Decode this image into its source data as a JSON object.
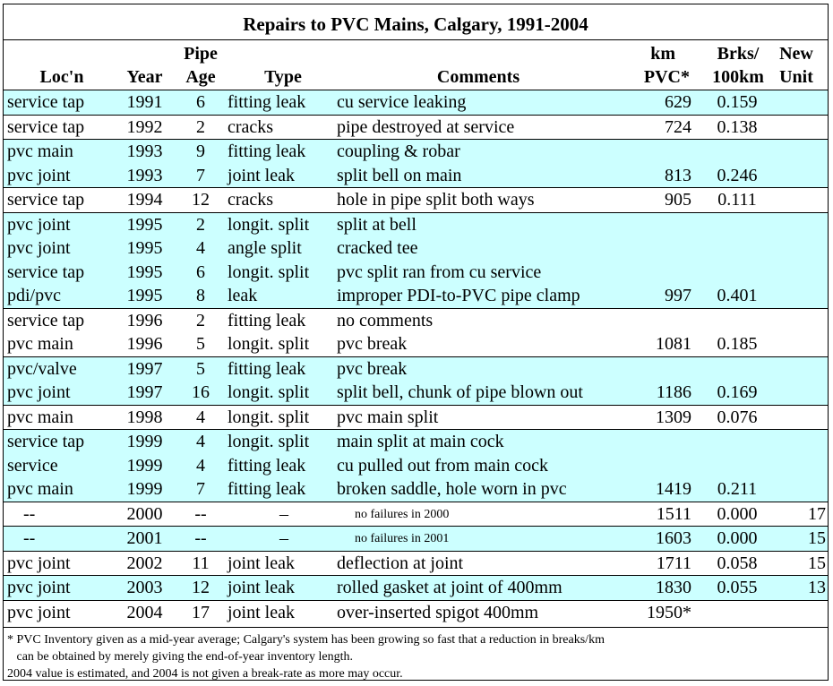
{
  "title": "Repairs to PVC Mains, Calgary, 1991-2004",
  "header": {
    "loc": "Loc'n",
    "year": "Year",
    "pipe": "Pipe",
    "age": "Age",
    "type": "Type",
    "comments": "Comments",
    "km": "km",
    "pvc": "PVC*",
    "brks": "Brks/",
    "per100km": "100km",
    "new": "New",
    "unit": "Unit"
  },
  "groups": [
    {
      "shade": "cyan",
      "rows": [
        {
          "loc": "service tap",
          "year": "1991",
          "age": "6",
          "type": "fitting leak",
          "comment": "cu service leaking",
          "km": "629",
          "brk": "0.159",
          "new": ""
        }
      ]
    },
    {
      "shade": "white",
      "rows": [
        {
          "loc": "service tap",
          "year": "1992",
          "age": "2",
          "type": "cracks",
          "comment": "pipe destroyed at service",
          "km": "724",
          "brk": "0.138",
          "new": ""
        }
      ]
    },
    {
      "shade": "cyan",
      "rows": [
        {
          "loc": "pvc main",
          "year": "1993",
          "age": "9",
          "type": "fitting leak",
          "comment": "coupling & robar",
          "km": "",
          "brk": "",
          "new": ""
        },
        {
          "loc": "pvc joint",
          "year": "1993",
          "age": "7",
          "type": "joint leak",
          "comment": "split bell on main",
          "km": "813",
          "brk": "0.246",
          "new": ""
        }
      ]
    },
    {
      "shade": "white",
      "rows": [
        {
          "loc": "service tap",
          "year": "1994",
          "age": "12",
          "type": "cracks",
          "comment": "hole in pipe split both ways",
          "km": "905",
          "brk": "0.111",
          "new": ""
        }
      ]
    },
    {
      "shade": "cyan",
      "rows": [
        {
          "loc": "pvc joint",
          "year": "1995",
          "age": "2",
          "type": "longit. split",
          "comment": "split at bell",
          "km": "",
          "brk": "",
          "new": ""
        },
        {
          "loc": "pvc joint",
          "year": "1995",
          "age": "4",
          "type": "angle split",
          "comment": "cracked tee",
          "km": "",
          "brk": "",
          "new": ""
        },
        {
          "loc": "service tap",
          "year": "1995",
          "age": "6",
          "type": "longit. split",
          "comment": "pvc split ran from cu service",
          "km": "",
          "brk": "",
          "new": ""
        },
        {
          "loc": "pdi/pvc",
          "year": "1995",
          "age": "8",
          "type": "leak",
          "comment": "improper PDI-to-PVC pipe clamp",
          "km": "997",
          "brk": "0.401",
          "new": ""
        }
      ]
    },
    {
      "shade": "white",
      "rows": [
        {
          "loc": "service tap",
          "year": "1996",
          "age": "2",
          "type": "fitting leak",
          "comment": "no comments",
          "km": "",
          "brk": "",
          "new": ""
        },
        {
          "loc": "pvc main",
          "year": "1996",
          "age": "5",
          "type": "longit. split",
          "comment": "pvc break",
          "km": "1081",
          "brk": "0.185",
          "new": ""
        }
      ]
    },
    {
      "shade": "cyan",
      "rows": [
        {
          "loc": "pvc/valve",
          "year": "1997",
          "age": "5",
          "type": "fitting leak",
          "comment": "pvc break",
          "km": "",
          "brk": "",
          "new": ""
        },
        {
          "loc": "pvc joint",
          "year": "1997",
          "age": "16",
          "type": "longit. split",
          "comment": "split bell, chunk of pipe blown out",
          "km": "1186",
          "brk": "0.169",
          "new": ""
        }
      ]
    },
    {
      "shade": "white",
      "rows": [
        {
          "loc": "pvc main",
          "year": "1998",
          "age": "4",
          "type": "longit. split",
          "comment": "pvc main split",
          "km": "1309",
          "brk": "0.076",
          "new": ""
        }
      ]
    },
    {
      "shade": "cyan",
      "rows": [
        {
          "loc": "service tap",
          "year": "1999",
          "age": "4",
          "type": "longit. split",
          "comment": "main split at main cock",
          "km": "",
          "brk": "",
          "new": ""
        },
        {
          "loc": "service",
          "year": "1999",
          "age": "4",
          "type": "fitting leak",
          "comment": "cu pulled out from main cock",
          "km": "",
          "brk": "",
          "new": ""
        },
        {
          "loc": "pvc main",
          "year": "1999",
          "age": "7",
          "type": "fitting leak",
          "comment": "broken saddle, hole worn in pvc",
          "km": "1419",
          "brk": "0.211",
          "new": ""
        }
      ]
    },
    {
      "shade": "white",
      "rows": [
        {
          "loc": "--",
          "year": "2000",
          "age": "--",
          "type": "–",
          "comment": "no failures in 2000",
          "km": "1511",
          "brk": "0.000",
          "new": "17",
          "small": true
        }
      ]
    },
    {
      "shade": "cyan",
      "rows": [
        {
          "loc": "--",
          "year": "2001",
          "age": "--",
          "type": "–",
          "comment": "no failures in 2001",
          "km": "1603",
          "brk": "0.000",
          "new": "15",
          "small": true
        }
      ]
    },
    {
      "shade": "white",
      "rows": [
        {
          "loc": "pvc joint",
          "year": "2002",
          "age": "11",
          "type": "joint leak",
          "comment": "deflection at joint",
          "km": "1711",
          "brk": "0.058",
          "new": "15"
        }
      ]
    },
    {
      "shade": "cyan",
      "rows": [
        {
          "loc": "pvc joint",
          "year": "2003",
          "age": "12",
          "type": "joint leak",
          "comment": "rolled gasket at joint of 400mm",
          "km": "1830",
          "brk": "0.055",
          "new": "13"
        }
      ]
    },
    {
      "shade": "white",
      "rows": [
        {
          "loc": "pvc joint",
          "year": "2004",
          "age": "17",
          "type": "joint leak",
          "comment": "over-inserted spigot 400mm",
          "km": "1950*",
          "brk": "",
          "new": ""
        }
      ]
    }
  ],
  "footnote": {
    "line1": "* PVC Inventory given as a mid-year average; Calgary's system has been growing so fast that a reduction in breaks/km",
    "line2": "   can be obtained by merely giving the end-of-year inventory length.",
    "line3": "2004 value is estimated, and 2004 is not given a break-rate as more may occur."
  }
}
